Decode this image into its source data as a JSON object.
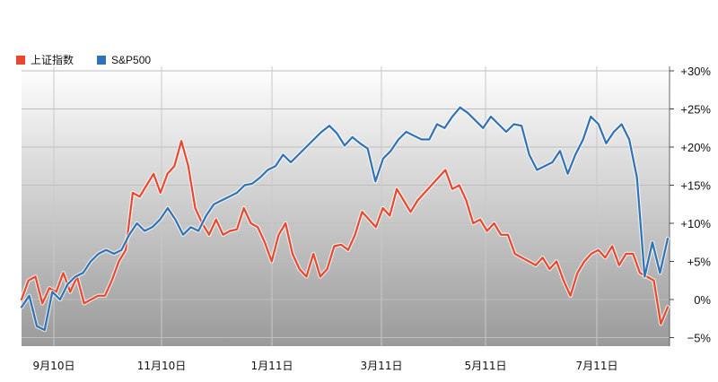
{
  "chart_data": {
    "type": "line",
    "x_ticks": [
      "9月10日",
      "11月10日",
      "1月11日",
      "3月11日",
      "5月11日",
      "7月11日"
    ],
    "y_ticks": [
      "+30%",
      "+25%",
      "+20%",
      "+15%",
      "+10%",
      "+5%",
      "0%",
      "−5%"
    ],
    "ylim": [
      -5,
      30
    ],
    "grid": true,
    "legend_position": "top-left",
    "series": [
      {
        "name": "上证指数",
        "color": "#e8482c",
        "values": [
          0,
          2.5,
          3,
          -0.5,
          1.5,
          1,
          3.5,
          1,
          3,
          -0.5,
          0,
          0.5,
          0.5,
          2.5,
          5,
          6.5,
          14,
          13.5,
          15,
          16.5,
          14,
          16.5,
          17.5,
          20.8,
          17.5,
          12,
          10,
          8.5,
          10.5,
          8.5,
          9,
          9.2,
          12,
          10,
          9.5,
          7.5,
          5,
          8.5,
          10,
          6,
          4,
          3,
          6,
          3,
          4,
          7,
          7.2,
          6.5,
          8.5,
          11.5,
          10.5,
          9.5,
          12,
          11,
          14.5,
          13,
          11.5,
          13,
          14,
          15,
          16,
          17,
          14.5,
          15,
          13,
          10,
          10.5,
          9,
          10,
          8.5,
          8.5,
          6,
          5.5,
          5,
          4.5,
          5.5,
          4,
          5,
          2.5,
          0.5,
          3.5,
          5,
          6,
          6.5,
          5.5,
          7,
          4.5,
          6,
          6,
          3.5,
          3,
          2.5,
          -3.2,
          -1
        ]
      },
      {
        "name": "S&P500",
        "color": "#2f72b6",
        "values": [
          -1,
          0.5,
          -3.5,
          -4,
          1,
          0,
          2,
          3,
          3.5,
          5,
          6,
          6.5,
          6,
          6.5,
          8.5,
          10,
          9,
          9.5,
          10.5,
          12,
          10.5,
          8.5,
          9.5,
          9,
          11,
          12.5,
          13,
          13.5,
          14,
          15,
          15.2,
          16,
          17,
          17.5,
          19,
          18,
          19,
          20,
          21,
          22,
          22.8,
          21.8,
          20.2,
          21.3,
          20.5,
          19.8,
          15.5,
          18.5,
          19.5,
          21,
          22,
          21.5,
          21,
          21,
          23,
          22.5,
          24,
          25.2,
          24.5,
          23.5,
          22.5,
          24,
          23,
          22,
          23,
          22.8,
          19,
          17,
          17.5,
          18,
          19.5,
          16.5,
          19,
          21,
          24,
          23,
          20.5,
          22,
          23,
          21,
          16,
          3,
          7.5,
          3.5,
          8
        ]
      }
    ]
  }
}
